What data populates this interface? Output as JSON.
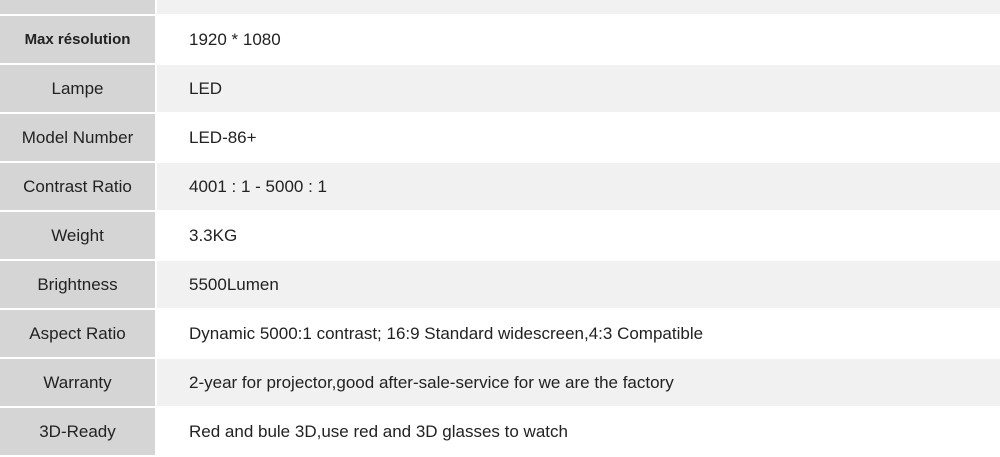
{
  "specs": [
    {
      "label": "Max résolution",
      "value": "1920 * 1080"
    },
    {
      "label": "Lampe",
      "value": "LED"
    },
    {
      "label": "Model Number",
      "value": "LED-86+"
    },
    {
      "label": "Contrast Ratio",
      "value": "4001 : 1 - 5000 : 1"
    },
    {
      "label": "Weight",
      "value": "3.3KG"
    },
    {
      "label": "Brightness",
      "value": "5500Lumen"
    },
    {
      "label": "Aspect Ratio",
      "value": "Dynamic 5000:1 contrast; 16:9 Standard widescreen,4:3 Compatible"
    },
    {
      "label": "Warranty",
      "value": "2-year for projector,good after-sale-service for we are the factory"
    },
    {
      "label": "3D-Ready",
      "value": "Red and bule 3D,use red and 3D glasses to watch"
    }
  ]
}
